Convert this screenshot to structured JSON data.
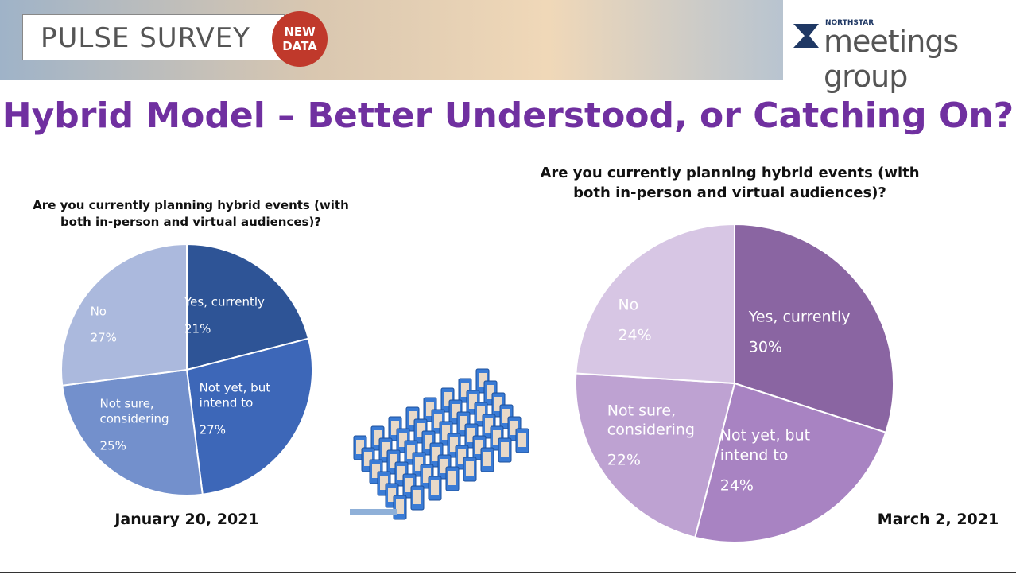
{
  "header": {
    "banner": "PULSE SURVEY",
    "badge": "NEW DATA",
    "logo_small": "NORTHSTAR",
    "logo": "meetings group"
  },
  "title": "Hybrid Model – Better Understood, or Catching On?",
  "chart_data": [
    {
      "type": "pie",
      "title": "Are you currently planning hybrid events (with both in-person and virtual audiences)?",
      "date": "January 20, 2021",
      "categories": [
        "Yes, currently",
        "Not yet, but intend to",
        "Not sure, considering",
        "No"
      ],
      "values": [
        21,
        27,
        25,
        27
      ],
      "value_labels": [
        "21%",
        "27%",
        "25%",
        "27%"
      ],
      "colors": [
        "#2e5496",
        "#3d67b8",
        "#7390cc",
        "#abb9dd"
      ]
    },
    {
      "type": "pie",
      "title": "Are you currently planning hybrid events (with both in-person and virtual audiences)?",
      "date": "March 2, 2021",
      "categories": [
        "Yes, currently",
        "Not yet, but intend to",
        "Not sure, considering",
        "No"
      ],
      "values": [
        30,
        24,
        22,
        24
      ],
      "value_labels": [
        "30%",
        "24%",
        "22%",
        "24%"
      ],
      "colors": [
        "#8a65a2",
        "#a883c2",
        "#bea2d2",
        "#d7c6e4"
      ]
    }
  ]
}
